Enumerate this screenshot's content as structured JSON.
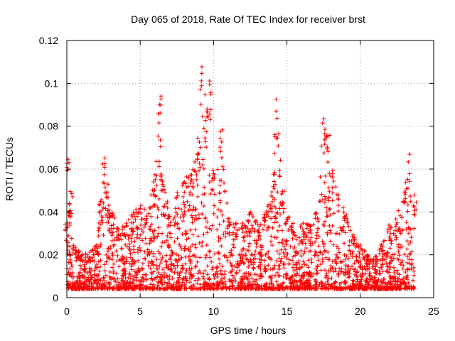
{
  "chart_data": {
    "type": "scatter",
    "title": "Day 065 of 2018, Rate Of TEC Index for receiver brst",
    "xlabel": "GPS time / hours",
    "ylabel": "ROTI / TECUs",
    "xlim": [
      0,
      25
    ],
    "ylim": [
      0,
      0.12
    ],
    "xticks": [
      "0",
      "5",
      "10",
      "15",
      "20",
      "25"
    ],
    "yticks": [
      "0",
      "0.02",
      "0.04",
      "0.06",
      "0.08",
      "0.1",
      "0.12"
    ],
    "grid": true,
    "marker": "plus",
    "color": "#ff0000",
    "envelope": {
      "x": [
        0,
        0.1,
        0.2,
        0.3,
        0.5,
        0.8,
        1.0,
        1.5,
        2.0,
        2.3,
        2.5,
        2.7,
        3.0,
        3.5,
        4.0,
        4.5,
        5.0,
        5.5,
        6.0,
        6.3,
        6.5,
        7.0,
        7.5,
        8.0,
        8.5,
        9.0,
        9.2,
        9.5,
        9.8,
        10.0,
        10.5,
        11.0,
        11.5,
        12.0,
        12.5,
        13.0,
        13.5,
        14.0,
        14.3,
        14.7,
        15.0,
        15.5,
        16.0,
        16.5,
        17.0,
        17.5,
        17.8,
        18.0,
        18.5,
        19.0,
        19.5,
        20.0,
        20.5,
        21.0,
        21.5,
        22.0,
        22.5,
        23.0,
        23.3,
        23.7
      ],
      "y": [
        0.035,
        0.065,
        0.045,
        0.05,
        0.025,
        0.022,
        0.02,
        0.022,
        0.025,
        0.045,
        0.069,
        0.055,
        0.04,
        0.035,
        0.035,
        0.04,
        0.045,
        0.04,
        0.058,
        0.095,
        0.06,
        0.04,
        0.05,
        0.055,
        0.06,
        0.08,
        0.108,
        0.09,
        0.105,
        0.06,
        0.08,
        0.04,
        0.035,
        0.035,
        0.04,
        0.035,
        0.04,
        0.05,
        0.094,
        0.05,
        0.04,
        0.035,
        0.035,
        0.035,
        0.04,
        0.084,
        0.08,
        0.065,
        0.05,
        0.04,
        0.03,
        0.025,
        0.02,
        0.02,
        0.025,
        0.035,
        0.04,
        0.05,
        0.068,
        0.048
      ],
      "floor": 0.004,
      "xmax": 23.7
    }
  }
}
